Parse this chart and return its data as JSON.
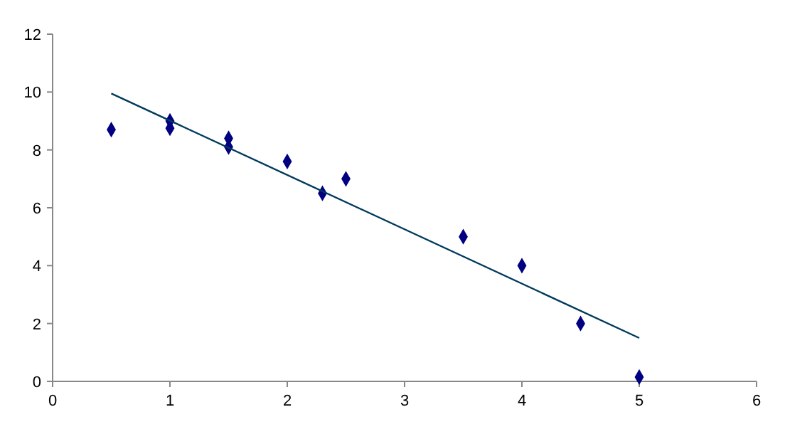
{
  "chart_data": {
    "type": "scatter",
    "xlim": [
      0,
      6
    ],
    "ylim": [
      0,
      12
    ],
    "xticks": [
      0,
      1,
      2,
      3,
      4,
      5,
      6
    ],
    "yticks": [
      0,
      2,
      4,
      6,
      8,
      10,
      12
    ],
    "grid": false,
    "series": [
      {
        "color": "#000080",
        "marker": "diamond",
        "x": [
          0.5,
          1,
          1,
          1.5,
          1.5,
          2,
          2.3,
          2.5,
          3.5,
          4,
          4.5,
          5
        ],
        "values": [
          8.7,
          9.0,
          8.75,
          8.4,
          8.1,
          7.6,
          6.5,
          7.0,
          5.0,
          4.0,
          2.0,
          0.15
        ]
      },
      {
        "type": "line",
        "color": "#003a5c",
        "marker": "none",
        "line_style": "solid",
        "x": [
          0.5,
          5
        ],
        "values": [
          9.95,
          1.5
        ]
      }
    ]
  }
}
